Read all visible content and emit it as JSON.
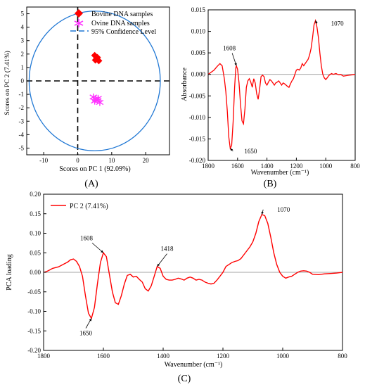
{
  "chart_data": [
    {
      "panel": "A",
      "panel_label": "(A)",
      "type": "scatter",
      "xlabel": "Scores on PC 1 (92.09%)",
      "ylabel": "Scores on PC 2 (7.41%)",
      "xlim": [
        -15,
        27
      ],
      "ylim": [
        -5.5,
        5.5
      ],
      "xticks": [
        -10,
        0,
        10,
        20
      ],
      "yticks": [
        5,
        4,
        3,
        2,
        1,
        0,
        -1,
        -2,
        -3,
        -4,
        -5
      ],
      "series": [
        {
          "name": "Bovine DNA samples",
          "marker": "diamond",
          "color": "#ff0000",
          "x": [
            5.0,
            5.6,
            5.2,
            6.2,
            5.8
          ],
          "y": [
            1.9,
            1.7,
            1.55,
            1.5,
            1.75
          ]
        },
        {
          "name": "Ovine DNA samples",
          "marker": "asterisk",
          "color": "#ff33ff",
          "x": [
            4.6,
            5.3,
            5.9,
            6.5,
            5.0,
            6.0
          ],
          "y": [
            -1.2,
            -1.35,
            -1.45,
            -1.6,
            -1.5,
            -1.3
          ]
        },
        {
          "name": "95% Confidence Level",
          "marker": "dashed-circle",
          "color": "#1f77d4",
          "center": [
            5.0,
            0.0
          ],
          "rx": 19.3,
          "ry": 5.2
        }
      ],
      "reference_lines": {
        "x": 0,
        "y": 0,
        "style": "dashed"
      }
    },
    {
      "panel": "B",
      "panel_label": "(B)",
      "type": "line",
      "xlabel": "Wavenumber (cm⁻¹)",
      "ylabel": "Absorbance",
      "xlim": [
        1800,
        800
      ],
      "ylim": [
        -0.02,
        0.015
      ],
      "xticks": [
        1800,
        1600,
        1400,
        1200,
        1000,
        800
      ],
      "yticks": [
        0.015,
        0.01,
        0.005,
        0.0,
        -0.005,
        -0.01,
        -0.015,
        -0.02
      ],
      "ytick_labels": [
        "0.015",
        "0.010",
        "0.005",
        "0.000",
        "-0.005",
        "-0.010",
        "-0.015",
        "-0.020"
      ],
      "color": "#ff0000",
      "x": [
        1800,
        1760,
        1740,
        1720,
        1705,
        1690,
        1680,
        1670,
        1660,
        1650,
        1640,
        1630,
        1620,
        1612,
        1608,
        1600,
        1590,
        1580,
        1570,
        1560,
        1550,
        1540,
        1530,
        1520,
        1510,
        1500,
        1490,
        1480,
        1470,
        1460,
        1450,
        1440,
        1430,
        1420,
        1410,
        1400,
        1390,
        1380,
        1370,
        1360,
        1350,
        1340,
        1330,
        1320,
        1310,
        1300,
        1290,
        1280,
        1270,
        1260,
        1250,
        1240,
        1230,
        1220,
        1210,
        1200,
        1190,
        1180,
        1170,
        1160,
        1150,
        1140,
        1130,
        1120,
        1110,
        1100,
        1090,
        1080,
        1070,
        1060,
        1050,
        1040,
        1030,
        1020,
        1010,
        1000,
        990,
        980,
        970,
        960,
        950,
        940,
        930,
        920,
        910,
        900,
        880,
        860,
        840,
        820,
        800
      ],
      "y": [
        0.0,
        0.001,
        0.0018,
        0.0025,
        0.002,
        -0.001,
        -0.004,
        -0.0085,
        -0.0145,
        -0.0172,
        -0.0165,
        -0.011,
        -0.003,
        0.0015,
        0.002,
        0.0012,
        -0.002,
        -0.007,
        -0.0108,
        -0.0115,
        -0.008,
        -0.003,
        -0.0015,
        -0.001,
        -0.0018,
        -0.003,
        -0.001,
        -0.002,
        -0.0045,
        -0.0058,
        -0.0035,
        -0.0005,
        -0.0002,
        -0.0005,
        -0.002,
        -0.0025,
        -0.0018,
        -0.0012,
        -0.0015,
        -0.002,
        -0.0025,
        -0.002,
        -0.0018,
        -0.0015,
        -0.002,
        -0.0025,
        -0.002,
        -0.0022,
        -0.0025,
        -0.0028,
        -0.003,
        -0.0022,
        -0.0015,
        -0.001,
        0.0,
        0.001,
        0.0012,
        0.001,
        0.0015,
        0.0025,
        0.002,
        0.0025,
        0.003,
        0.0035,
        0.0045,
        0.006,
        0.0085,
        0.0115,
        0.0125,
        0.011,
        0.0085,
        0.005,
        0.002,
        0.0,
        -0.0008,
        -0.0012,
        -0.0008,
        -0.0003,
        0.0,
        0.0002,
        0.0,
        0.0001,
        0.0002,
        0.0,
        -0.0001,
        0.0,
        -0.0004,
        -0.0003,
        -0.0002,
        -0.0001,
        0.0
      ],
      "annotations": [
        {
          "text": "1070",
          "x": 1070,
          "y": 0.0125
        },
        {
          "text": "1608",
          "x": 1608,
          "y": 0.002
        },
        {
          "text": "1650",
          "x": 1650,
          "y": -0.0172
        }
      ]
    },
    {
      "panel": "C",
      "panel_label": "(C)",
      "type": "line",
      "xlabel": "Wavenumber (cm⁻¹)",
      "ylabel": "PCA loading",
      "xlim": [
        1800,
        800
      ],
      "ylim": [
        -0.2,
        0.2
      ],
      "xticks": [
        1800,
        1600,
        1400,
        1200,
        1000,
        800
      ],
      "yticks": [
        0.2,
        0.15,
        0.1,
        0.05,
        0.0,
        -0.05,
        -0.1,
        -0.15,
        -0.2
      ],
      "ytick_labels": [
        "0.20",
        "0.15",
        "0.10",
        "0.05",
        "0.00",
        "-0.05",
        "-0.10",
        "-0.15",
        "-0.20"
      ],
      "color": "#ff0000",
      "legend": "PC 2 (7.41%)",
      "x": [
        1800,
        1790,
        1780,
        1770,
        1760,
        1750,
        1740,
        1730,
        1720,
        1710,
        1700,
        1690,
        1680,
        1670,
        1660,
        1650,
        1640,
        1630,
        1620,
        1610,
        1600,
        1590,
        1580,
        1570,
        1560,
        1550,
        1540,
        1530,
        1520,
        1510,
        1500,
        1490,
        1480,
        1470,
        1460,
        1450,
        1440,
        1430,
        1420,
        1410,
        1400,
        1390,
        1380,
        1370,
        1360,
        1350,
        1340,
        1330,
        1320,
        1310,
        1300,
        1290,
        1280,
        1270,
        1260,
        1250,
        1240,
        1230,
        1220,
        1210,
        1200,
        1190,
        1180,
        1170,
        1160,
        1150,
        1140,
        1130,
        1120,
        1110,
        1100,
        1090,
        1080,
        1070,
        1060,
        1050,
        1040,
        1030,
        1020,
        1010,
        1000,
        990,
        980,
        970,
        960,
        950,
        940,
        930,
        920,
        910,
        900,
        880,
        860,
        840,
        820,
        800
      ],
      "y": [
        0.0,
        0.002,
        0.006,
        0.01,
        0.012,
        0.014,
        0.018,
        0.022,
        0.026,
        0.032,
        0.034,
        0.028,
        0.015,
        -0.01,
        -0.06,
        -0.105,
        -0.118,
        -0.09,
        -0.03,
        0.025,
        0.05,
        0.04,
        -0.005,
        -0.05,
        -0.078,
        -0.082,
        -0.06,
        -0.03,
        -0.008,
        -0.005,
        -0.012,
        -0.01,
        -0.018,
        -0.025,
        -0.042,
        -0.048,
        -0.035,
        -0.01,
        0.015,
        0.01,
        -0.01,
        -0.018,
        -0.02,
        -0.02,
        -0.018,
        -0.015,
        -0.017,
        -0.02,
        -0.015,
        -0.012,
        -0.015,
        -0.02,
        -0.018,
        -0.02,
        -0.025,
        -0.028,
        -0.03,
        -0.028,
        -0.02,
        -0.01,
        0.0,
        0.015,
        0.02,
        0.025,
        0.028,
        0.03,
        0.035,
        0.045,
        0.055,
        0.065,
        0.078,
        0.1,
        0.13,
        0.148,
        0.145,
        0.125,
        0.09,
        0.05,
        0.02,
        0.0,
        -0.01,
        -0.015,
        -0.012,
        -0.01,
        -0.005,
        0.0,
        0.003,
        0.004,
        0.003,
        0.0,
        -0.005,
        -0.006,
        -0.004,
        -0.003,
        -0.002,
        0.0
      ],
      "annotations": [
        {
          "text": "1070",
          "x": 1070,
          "y": 0.148
        },
        {
          "text": "1608",
          "x": 1600,
          "y": 0.05
        },
        {
          "text": "1418",
          "x": 1420,
          "y": 0.015
        },
        {
          "text": "1650",
          "x": 1640,
          "y": -0.118
        }
      ]
    }
  ]
}
